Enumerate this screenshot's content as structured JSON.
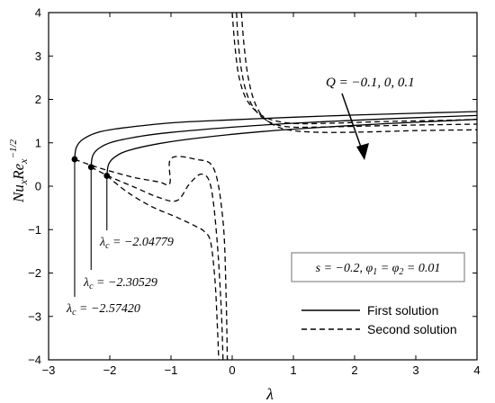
{
  "chart_data": {
    "type": "line",
    "xlabel": "λ",
    "ylabel": "Nu_x Re_x^{-1/2}",
    "xlim": [
      -3,
      4
    ],
    "ylim": [
      -4,
      4
    ],
    "xticks": [
      "-3",
      "-2",
      "-1",
      "0",
      "1",
      "2",
      "3",
      "4"
    ],
    "yticks": [
      "-4",
      "-3",
      "-2",
      "-1",
      "0",
      "1",
      "2",
      "3",
      "4"
    ],
    "grid": false,
    "legend": {
      "placement": "bottom-right",
      "entries": [
        {
          "label": "First solution",
          "style": "solid"
        },
        {
          "label": "Second solution",
          "style": "dashed"
        }
      ]
    },
    "annotations": {
      "Q_label": "Q = −0.1, 0, 0.1",
      "params_box": "s = −0.2, φ1 = φ2 = 0.01",
      "critical_labels": [
        "λc = −2.57420",
        "λc = −2.30529",
        "λc = −2.04779"
      ]
    },
    "critical_points": [
      {
        "lambda": -2.5742,
        "value": 0.62
      },
      {
        "lambda": -2.30529,
        "value": 0.44
      },
      {
        "lambda": -2.04779,
        "value": 0.24
      }
    ],
    "series": [
      {
        "style": "solid",
        "x": [
          -2.5742,
          -2.55,
          -2.45,
          -2.2,
          -1.8,
          -1,
          0,
          1,
          2,
          3,
          4
        ],
        "y": [
          0.62,
          0.88,
          1.07,
          1.24,
          1.34,
          1.46,
          1.53,
          1.59,
          1.64,
          1.68,
          1.72
        ]
      },
      {
        "style": "solid",
        "x": [
          -2.30529,
          -2.28,
          -2.18,
          -1.95,
          -1.5,
          -1,
          0,
          1,
          2,
          3,
          4
        ],
        "y": [
          0.44,
          0.7,
          0.87,
          1.02,
          1.15,
          1.24,
          1.36,
          1.45,
          1.52,
          1.58,
          1.63
        ]
      },
      {
        "style": "solid",
        "x": [
          -2.04779,
          -2.02,
          -1.92,
          -1.7,
          -1.2,
          -0.5,
          0.5,
          1.5,
          2.5,
          4
        ],
        "y": [
          0.24,
          0.5,
          0.67,
          0.82,
          0.98,
          1.12,
          1.26,
          1.36,
          1.44,
          1.54
        ]
      },
      {
        "style": "dashed",
        "x": [
          -2.5742,
          -2.3,
          -2.0,
          -1.6,
          -1.2,
          -1.02,
          -1.0,
          -0.6,
          -0.3,
          -0.15,
          -0.1,
          -0.08
        ],
        "y": [
          0.62,
          0.48,
          0.35,
          0.2,
          0.1,
          0.06,
          0.64,
          0.62,
          0.4,
          -0.8,
          -2.5,
          -4.0
        ]
      },
      {
        "style": "dashed",
        "x": [
          -2.30529,
          -2.0,
          -1.6,
          -1.2,
          -0.9,
          -0.7,
          -0.5,
          -0.35,
          -0.25,
          -0.18,
          -0.15
        ],
        "y": [
          0.44,
          0.22,
          -0.02,
          -0.26,
          -0.33,
          0.05,
          0.28,
          0.0,
          -1.2,
          -2.8,
          -4.0
        ]
      },
      {
        "style": "dashed",
        "x": [
          -2.04779,
          -1.7,
          -1.3,
          -0.9,
          -0.6,
          -0.45,
          -0.35,
          -0.28,
          -0.24,
          -0.22
        ],
        "y": [
          0.24,
          -0.15,
          -0.48,
          -0.72,
          -0.92,
          -1.05,
          -1.3,
          -2.2,
          -3.3,
          -4.0
        ]
      },
      {
        "style": "dashed",
        "x": [
          0.0,
          0.04,
          0.1,
          0.2,
          0.35,
          0.55,
          0.8,
          1.1,
          1.6,
          2.5,
          3.5,
          4.0
        ],
        "y": [
          4.0,
          3.3,
          2.6,
          2.1,
          1.78,
          1.58,
          1.48,
          1.44,
          1.45,
          1.49,
          1.52,
          1.54
        ]
      },
      {
        "style": "dashed",
        "x": [
          0.07,
          0.1,
          0.16,
          0.26,
          0.42,
          0.62,
          0.9,
          1.3,
          2.0,
          3.0,
          4.0
        ],
        "y": [
          4.0,
          3.3,
          2.6,
          2.05,
          1.68,
          1.47,
          1.37,
          1.36,
          1.38,
          1.41,
          1.43
        ]
      },
      {
        "style": "dashed",
        "x": [
          0.15,
          0.19,
          0.25,
          0.35,
          0.5,
          0.72,
          1.0,
          1.5,
          2.2,
          3.0,
          4.0
        ],
        "y": [
          4.0,
          3.3,
          2.6,
          2.0,
          1.6,
          1.38,
          1.28,
          1.24,
          1.25,
          1.28,
          1.3
        ]
      }
    ]
  }
}
